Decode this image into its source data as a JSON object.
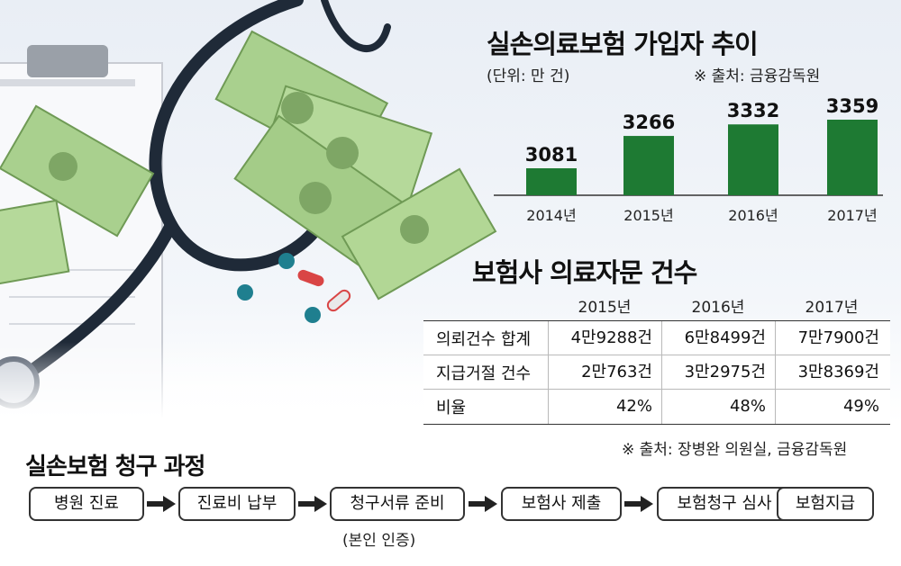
{
  "chart_data": [
    {
      "type": "bar",
      "title": "실손의료보험 가입자 추이",
      "unit": "(단위: 만 건)",
      "source": "※ 출처: 금융감독원",
      "categories": [
        "2014년",
        "2015년",
        "2016년",
        "2017년"
      ],
      "values": [
        3081,
        3266,
        3332,
        3359
      ],
      "value_labels": [
        "3081",
        "3266",
        "3332",
        "3359"
      ],
      "bar_color": "#1e7a33"
    },
    {
      "type": "table",
      "title": "보험사 의료자문 건수",
      "columns": [
        "2015년",
        "2016년",
        "2017년"
      ],
      "rows": [
        {
          "label": "의뢰건수 합계",
          "values": [
            "4만9288건",
            "6만8499건",
            "7만7900건"
          ]
        },
        {
          "label": "지급거절 건수",
          "values": [
            "2만763건",
            "3만2975건",
            "3만8369건"
          ]
        },
        {
          "label": "비율",
          "values": [
            "42%",
            "48%",
            "49%"
          ]
        }
      ],
      "source": "※ 출처: 장병완 의원실, 금융감독원"
    }
  ],
  "process": {
    "title": "실손보험 청구 과정",
    "steps": [
      "병원 진료",
      "진료비 납부",
      "청구서류 준비",
      "보험사 제출",
      "보험청구 심사",
      "보험지급"
    ],
    "note": "(본인 인증)"
  }
}
